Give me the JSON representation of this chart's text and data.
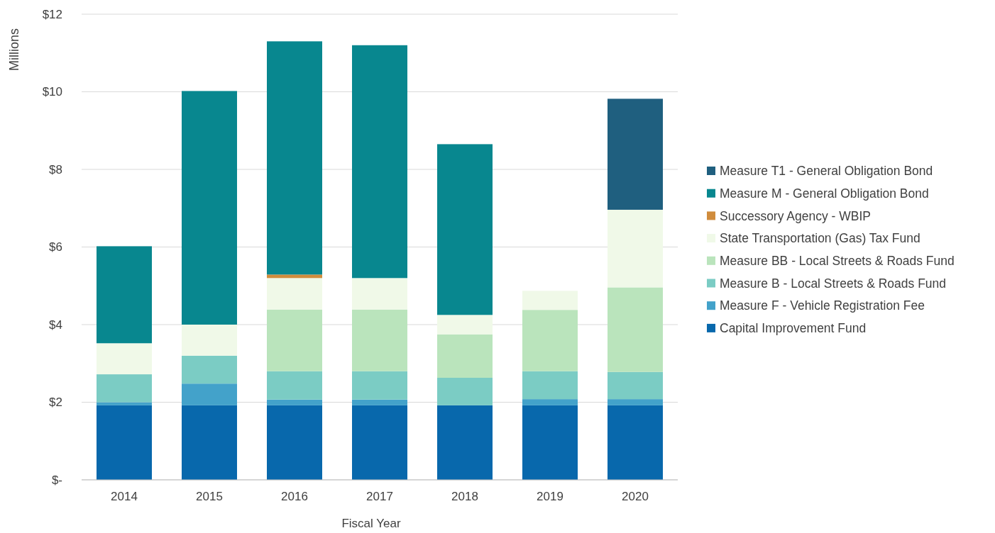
{
  "chart_data": {
    "type": "bar",
    "stacked": true,
    "xlabel": "Fiscal Year",
    "ylabel": "Millions",
    "categories": [
      "2014",
      "2015",
      "2016",
      "2017",
      "2018",
      "2019",
      "2020"
    ],
    "series": [
      {
        "name": "Capital Improvement Fund",
        "color": "#0868ac",
        "values": [
          1.92,
          1.92,
          1.92,
          1.92,
          1.92,
          1.92,
          1.92
        ]
      },
      {
        "name": "Measure F - Vehicle Registration Fee",
        "color": "#43a2ca",
        "values": [
          0.08,
          0.56,
          0.15,
          0.15,
          null,
          0.16,
          0.16
        ]
      },
      {
        "name": "Measure B - Local Streets & Roads Fund",
        "color": "#7bccc4",
        "values": [
          0.72,
          0.72,
          0.73,
          0.73,
          0.71,
          0.72,
          0.7
        ]
      },
      {
        "name": "Measure BB - Local Streets & Roads Fund",
        "color": "#bae4bc",
        "values": [
          null,
          null,
          1.59,
          1.59,
          1.12,
          1.58,
          2.18
        ]
      },
      {
        "name": "State Transportation (Gas) Tax Fund",
        "color": "#f0f9e8",
        "values": [
          0.8,
          0.8,
          0.81,
          0.81,
          0.5,
          0.49,
          2.0
        ]
      },
      {
        "name": "Successory Agency - WBIP",
        "color": "#d08c3c",
        "values": [
          null,
          null,
          0.09,
          null,
          null,
          null,
          null
        ]
      },
      {
        "name": "Measure M - General Obligation Bond",
        "color": "#08878f",
        "values": [
          2.5,
          6.02,
          6.01,
          6.0,
          4.4,
          null,
          null
        ]
      },
      {
        "name": "Measure T1 - General Obligation Bond",
        "color": "#1f5f7f",
        "values": [
          null,
          null,
          null,
          null,
          null,
          null,
          2.86
        ]
      }
    ],
    "ylim": [
      0,
      12
    ],
    "yticks": [
      {
        "value": 0,
        "label": "$-"
      },
      {
        "value": 2,
        "label": "$2"
      },
      {
        "value": 4,
        "label": "$4"
      },
      {
        "value": 6,
        "label": "$6"
      },
      {
        "value": 8,
        "label": "$8"
      },
      {
        "value": 10,
        "label": "$10"
      },
      {
        "value": 12,
        "label": "$12"
      }
    ],
    "grid": "y",
    "legend": "right"
  }
}
